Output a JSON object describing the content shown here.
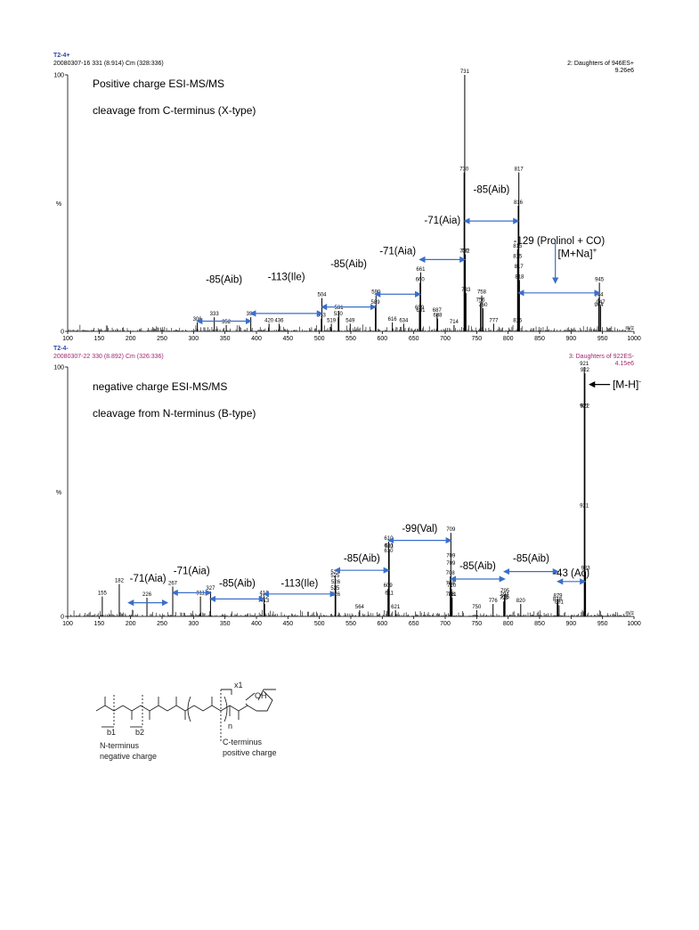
{
  "chart_data": [
    {
      "type": "bar",
      "panel_id": "T2-4+",
      "scan_info": "20080307-16 331 (8.914) Cm (328:336)",
      "function_info": "2: Daughters of 946ES+",
      "intensity_scale": "9.26e6",
      "ylabel": "%",
      "xlabel": "m/z",
      "xlim": [
        100,
        1000
      ],
      "ylim": [
        0,
        100
      ],
      "x_ticks": [
        "100",
        "150",
        "200",
        "250",
        "300",
        "350",
        "400",
        "450",
        "500",
        "550",
        "600",
        "650",
        "700",
        "750",
        "800",
        "850",
        "900",
        "950",
        "1000"
      ],
      "y_ticks": [
        "0",
        "100"
      ],
      "annotations": [
        "Positive charge ESI-MS/MS",
        "cleavage from C-terminus (X-type)"
      ],
      "peaks": [
        {
          "x": 306,
          "y": 3.5,
          "label": "306"
        },
        {
          "x": 333,
          "y": 5.5,
          "label": "333"
        },
        {
          "x": 352,
          "y": 2.5,
          "label": "352"
        },
        {
          "x": 391,
          "y": 5.5,
          "label": "391"
        },
        {
          "x": 420,
          "y": 3,
          "label": "420"
        },
        {
          "x": 436,
          "y": 3,
          "label": "436"
        },
        {
          "x": 503,
          "y": 5,
          "label": "503"
        },
        {
          "x": 504,
          "y": 13,
          "label": "504"
        },
        {
          "x": 519,
          "y": 3,
          "label": "519"
        },
        {
          "x": 530,
          "y": 5.5,
          "label": "530"
        },
        {
          "x": 531,
          "y": 8,
          "label": "531"
        },
        {
          "x": 549,
          "y": 3,
          "label": "549"
        },
        {
          "x": 589,
          "y": 10,
          "label": "589"
        },
        {
          "x": 590,
          "y": 14,
          "label": "590"
        },
        {
          "x": 616,
          "y": 3.5,
          "label": "616"
        },
        {
          "x": 634,
          "y": 3,
          "label": "634"
        },
        {
          "x": 659,
          "y": 8,
          "label": "659"
        },
        {
          "x": 660,
          "y": 19,
          "label": "660"
        },
        {
          "x": 661,
          "y": 23,
          "label": "661"
        },
        {
          "x": 661,
          "y": 7,
          "label": "661"
        },
        {
          "x": 687,
          "y": 7,
          "label": "687"
        },
        {
          "x": 688,
          "y": 5,
          "label": "688"
        },
        {
          "x": 714,
          "y": 2.5,
          "label": "714"
        },
        {
          "x": 730,
          "y": 30,
          "label": "730"
        },
        {
          "x": 730,
          "y": 62,
          "label": "730"
        },
        {
          "x": 731,
          "y": 100,
          "label": "731"
        },
        {
          "x": 732,
          "y": 30,
          "label": "732"
        },
        {
          "x": 733,
          "y": 15,
          "label": "733"
        },
        {
          "x": 756,
          "y": 11,
          "label": "756"
        },
        {
          "x": 758,
          "y": 14,
          "label": "758"
        },
        {
          "x": 760,
          "y": 9,
          "label": "760"
        },
        {
          "x": 777,
          "y": 3,
          "label": "777"
        },
        {
          "x": 815,
          "y": 3,
          "label": "815"
        },
        {
          "x": 815,
          "y": 28,
          "label": "815"
        },
        {
          "x": 815,
          "y": 32,
          "label": "815"
        },
        {
          "x": 816,
          "y": 49,
          "label": "816"
        },
        {
          "x": 817,
          "y": 62,
          "label": "817"
        },
        {
          "x": 817,
          "y": 24,
          "label": "817"
        },
        {
          "x": 818,
          "y": 20,
          "label": "818"
        },
        {
          "x": 944,
          "y": 9,
          "label": "944"
        },
        {
          "x": 944,
          "y": 13,
          "label": "944"
        },
        {
          "x": 945,
          "y": 19,
          "label": "945"
        },
        {
          "x": 947,
          "y": 10,
          "label": "947"
        }
      ],
      "fragment_arrows": [
        {
          "from": 306,
          "to": 391,
          "label": "-85(Aib)",
          "y": 4,
          "label_y": 19
        },
        {
          "from": 391,
          "to": 504,
          "label": "-113(Ile)",
          "y": 7,
          "label_y": 20
        },
        {
          "from": 504,
          "to": 589,
          "label": "-85(Aib)",
          "y": 9.5,
          "label_y": 25
        },
        {
          "from": 589,
          "to": 660,
          "label": "-71(Aia)",
          "y": 14.5,
          "label_y": 30
        },
        {
          "from": 660,
          "to": 731,
          "label": "-71(Aia)",
          "y": 28,
          "label_y": 42
        },
        {
          "from": 731,
          "to": 816,
          "label": "-85(Aib)",
          "y": 43,
          "label_y": 54
        },
        {
          "from": 817,
          "to": 945,
          "label": "-129 (Prolinol + CO)",
          "y": 15,
          "label_y": 34
        }
      ],
      "precursor_label": "[M+Na]",
      "precursor_label_sup": "+",
      "precursor_marker_x": 875
    },
    {
      "type": "bar",
      "panel_id": "T2-4-",
      "scan_info": "20080307-22 330 (8.892) Cm (326:336)",
      "function_info": "3: Daughters of 922ES-",
      "intensity_scale": "4.15e6",
      "ylabel": "%",
      "xlabel": "m/z",
      "xlim": [
        100,
        1000
      ],
      "ylim": [
        0,
        100
      ],
      "x_ticks": [
        "100",
        "150",
        "200",
        "250",
        "300",
        "350",
        "400",
        "450",
        "500",
        "550",
        "600",
        "650",
        "700",
        "750",
        "800",
        "850",
        "900",
        "950",
        "1000"
      ],
      "y_ticks": [
        "0",
        "100"
      ],
      "annotations": [
        "negative charge ESI-MS/MS",
        "cleavage from N-terminus (B-type)"
      ],
      "peaks": [
        {
          "x": 155,
          "y": 8,
          "label": "155"
        },
        {
          "x": 182,
          "y": 13,
          "label": "182"
        },
        {
          "x": 226,
          "y": 7.5,
          "label": "226"
        },
        {
          "x": 267,
          "y": 12,
          "label": "267"
        },
        {
          "x": 311,
          "y": 8,
          "label": "311"
        },
        {
          "x": 327,
          "y": 10,
          "label": "327"
        },
        {
          "x": 412,
          "y": 6.5,
          "label": "412"
        },
        {
          "x": 412,
          "y": 8,
          "label": "412"
        },
        {
          "x": 413,
          "y": 5,
          "label": "413"
        },
        {
          "x": 525,
          "y": 15,
          "label": "525"
        },
        {
          "x": 525,
          "y": 10,
          "label": "525"
        },
        {
          "x": 525,
          "y": 16.5,
          "label": "525"
        },
        {
          "x": 526,
          "y": 12.5,
          "label": "526"
        },
        {
          "x": 526,
          "y": 7.5,
          "label": "526"
        },
        {
          "x": 564,
          "y": 2.5,
          "label": "564"
        },
        {
          "x": 609,
          "y": 11,
          "label": "609"
        },
        {
          "x": 610,
          "y": 30,
          "label": "610"
        },
        {
          "x": 610,
          "y": 25,
          "label": "610"
        },
        {
          "x": 610,
          "y": 27,
          "label": "610"
        },
        {
          "x": 611,
          "y": 27,
          "label": "611"
        },
        {
          "x": 611,
          "y": 8,
          "label": "611"
        },
        {
          "x": 621,
          "y": 2.5,
          "label": "621"
        },
        {
          "x": 708,
          "y": 7.5,
          "label": "708"
        },
        {
          "x": 708,
          "y": 12,
          "label": "708"
        },
        {
          "x": 708,
          "y": 16,
          "label": "708"
        },
        {
          "x": 709,
          "y": 23,
          "label": "709"
        },
        {
          "x": 709,
          "y": 33.5,
          "label": "709"
        },
        {
          "x": 709,
          "y": 20,
          "label": "709"
        },
        {
          "x": 710,
          "y": 11,
          "label": "710"
        },
        {
          "x": 711,
          "y": 7.5,
          "label": "711"
        },
        {
          "x": 750,
          "y": 2.5,
          "label": "750"
        },
        {
          "x": 776,
          "y": 5,
          "label": "776"
        },
        {
          "x": 793,
          "y": 6,
          "label": "793"
        },
        {
          "x": 794,
          "y": 7.5,
          "label": "794"
        },
        {
          "x": 795,
          "y": 9,
          "label": "795"
        },
        {
          "x": 795,
          "y": 6.5,
          "label": "795"
        },
        {
          "x": 820,
          "y": 5,
          "label": "820"
        },
        {
          "x": 878,
          "y": 5.5,
          "label": "878"
        },
        {
          "x": 879,
          "y": 7,
          "label": "879"
        },
        {
          "x": 881,
          "y": 4.5,
          "label": "881"
        },
        {
          "x": 921,
          "y": 100,
          "label": "921"
        },
        {
          "x": 921,
          "y": 43,
          "label": "921"
        },
        {
          "x": 921,
          "y": 83,
          "label": "921"
        },
        {
          "x": 922,
          "y": 97.5,
          "label": "922"
        },
        {
          "x": 922,
          "y": 83,
          "label": "922"
        },
        {
          "x": 923,
          "y": 18,
          "label": "923"
        }
      ],
      "fragment_arrows": [
        {
          "from": 197,
          "to": 258,
          "label": "-71(Aia)",
          "y": 5.5,
          "label_y": 14
        },
        {
          "from": 267,
          "to": 327,
          "label": "-71(Aia)",
          "y": 9.5,
          "label_y": 17
        },
        {
          "from": 327,
          "to": 412,
          "label": "-85(Aib)",
          "y": 7,
          "label_y": 12
        },
        {
          "from": 412,
          "to": 525,
          "label": "-113(Ile)",
          "y": 9,
          "label_y": 12
        },
        {
          "from": 525,
          "to": 610,
          "label": "-85(Aib)",
          "y": 18.5,
          "label_y": 22
        },
        {
          "from": 610,
          "to": 709,
          "label": "-99(Val)",
          "y": 30.5,
          "label_y": 34
        },
        {
          "from": 709,
          "to": 794,
          "label": "-85(Aib)",
          "y": 15,
          "label_y": 19
        },
        {
          "from": 794,
          "to": 879,
          "label": "-85(Aib)",
          "y": 18,
          "label_y": 22
        },
        {
          "from": 879,
          "to": 922,
          "label": "-43 (Ac)",
          "y": 14,
          "label_y": 16
        }
      ],
      "precursor_label": "[M-H]",
      "precursor_label_sup": "-"
    }
  ],
  "structure": {
    "labels": [
      "x1",
      "b1",
      "b2",
      "N-terminus",
      "negative charge",
      "C-terminus",
      "positive charge"
    ],
    "subscripts": [
      "n"
    ],
    "atom_labels": [
      "OH",
      "N",
      "O",
      "O",
      "O",
      "O",
      "R",
      "R",
      "R"
    ]
  },
  "colors": {
    "arrow": "#3b6fc9",
    "panel_id": "#2b4aa8",
    "function_info_neg": "#a0256f",
    "scan_info_neg": "#a0256f",
    "peak": "#000000"
  }
}
